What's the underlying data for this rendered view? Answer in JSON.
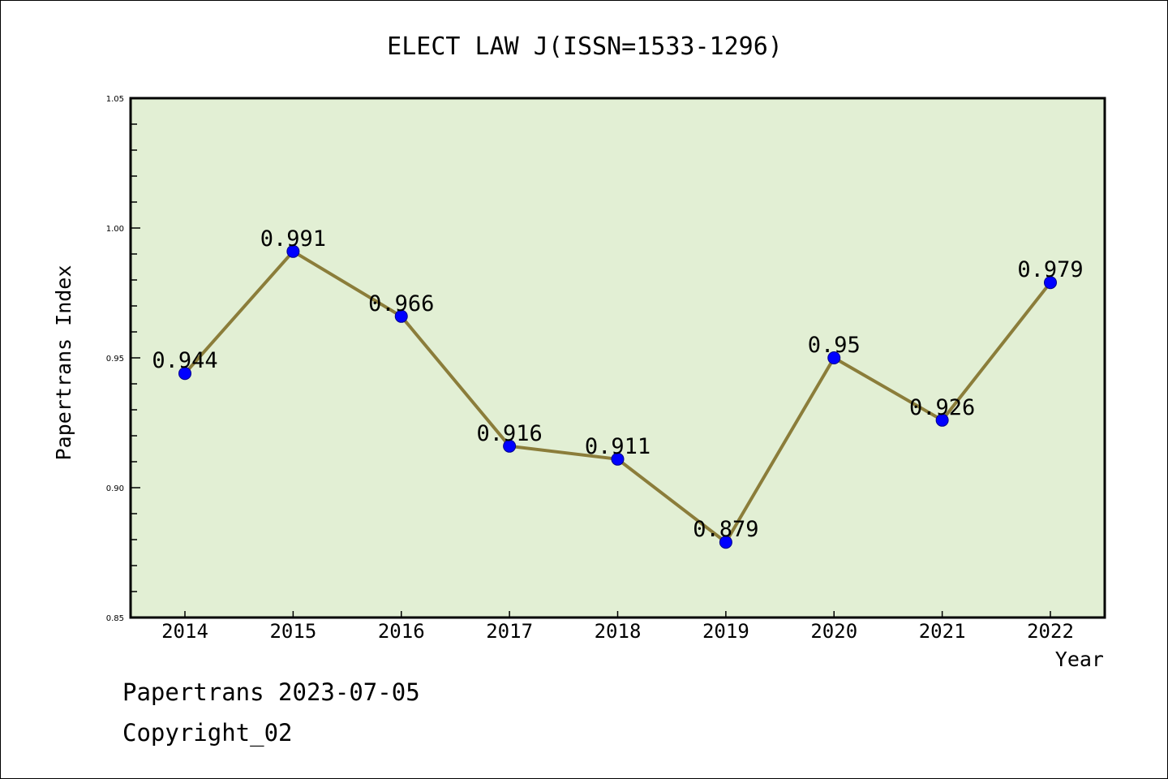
{
  "chart_data": {
    "type": "line",
    "title": "ELECT LAW J(ISSN=1533-1296)",
    "xlabel": "Year",
    "ylabel": "Papertrans Index",
    "categories": [
      "2014",
      "2015",
      "2016",
      "2017",
      "2018",
      "2019",
      "2020",
      "2021",
      "2022"
    ],
    "values": [
      0.944,
      0.991,
      0.966,
      0.916,
      0.911,
      0.879,
      0.95,
      0.926,
      0.979
    ],
    "data_labels": [
      "0.944",
      "0.991",
      "0.966",
      "0.916",
      "0.911",
      "0.879",
      "0.95",
      "0.926",
      "0.979"
    ],
    "ylim": [
      0.85,
      1.05
    ],
    "yticks": [
      "0.85",
      "0.90",
      "0.95",
      "1.00",
      "1.05"
    ],
    "ytick_values": [
      0.85,
      0.9,
      0.95,
      1.0,
      1.05
    ],
    "minor_step": 0.01,
    "grid": false,
    "colors": {
      "line": "#8b7d3a",
      "marker": "#0000ff",
      "plot_bg": "#e2efd4"
    }
  },
  "footer": {
    "line1": "Papertrans 2023-07-05",
    "line2": "Copyright_02"
  }
}
